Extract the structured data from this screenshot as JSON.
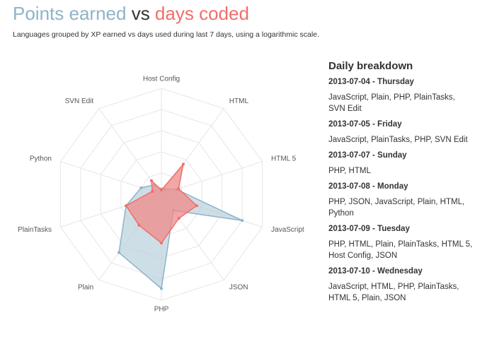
{
  "chart_data": {
    "type": "radar",
    "title_connector": "vs",
    "subtitle": "Languages grouped by XP earned vs days used during last 7 days, using a logarithmic scale.",
    "categories": [
      "Host Config",
      "HTML",
      "HTML 5",
      "JavaScript",
      "JSON",
      "PHP",
      "Plain",
      "PlainTasks",
      "Python",
      "SVN Edit"
    ],
    "rlim": [
      0,
      100
    ],
    "rticks": [
      20,
      40,
      60,
      80,
      100
    ],
    "grid": true,
    "series": [
      {
        "name": "Points earned",
        "color": "#8fb3c8",
        "fill": "#b9d0dd",
        "values": [
          5,
          6,
          15,
          80,
          19,
          89,
          68,
          35,
          20,
          11
        ]
      },
      {
        "name": "days coded",
        "color": "#f06e6a",
        "fill": "#f08a88",
        "values": [
          4,
          35,
          17,
          35,
          28,
          46,
          36,
          35,
          9,
          16
        ]
      }
    ]
  },
  "sidebar": {
    "title": "Daily breakdown",
    "days": [
      {
        "heading": "2013-07-04 - Thursday",
        "languages": "JavaScript, Plain, PHP, PlainTasks, SVN Edit"
      },
      {
        "heading": "2013-07-05 - Friday",
        "languages": "JavaScript, PlainTasks, PHP, SVN Edit"
      },
      {
        "heading": "2013-07-07 - Sunday",
        "languages": "PHP, HTML"
      },
      {
        "heading": "2013-07-08 - Monday",
        "languages": "PHP, JSON, JavaScript, Plain, HTML, Python"
      },
      {
        "heading": "2013-07-09 - Tuesday",
        "languages": "PHP, HTML, Plain, PlainTasks, HTML 5, Host Config, JSON"
      },
      {
        "heading": "2013-07-10 - Wednesday",
        "languages": "JavaScript, HTML, PHP, PlainTasks, HTML 5, Plain, JSON"
      }
    ]
  }
}
